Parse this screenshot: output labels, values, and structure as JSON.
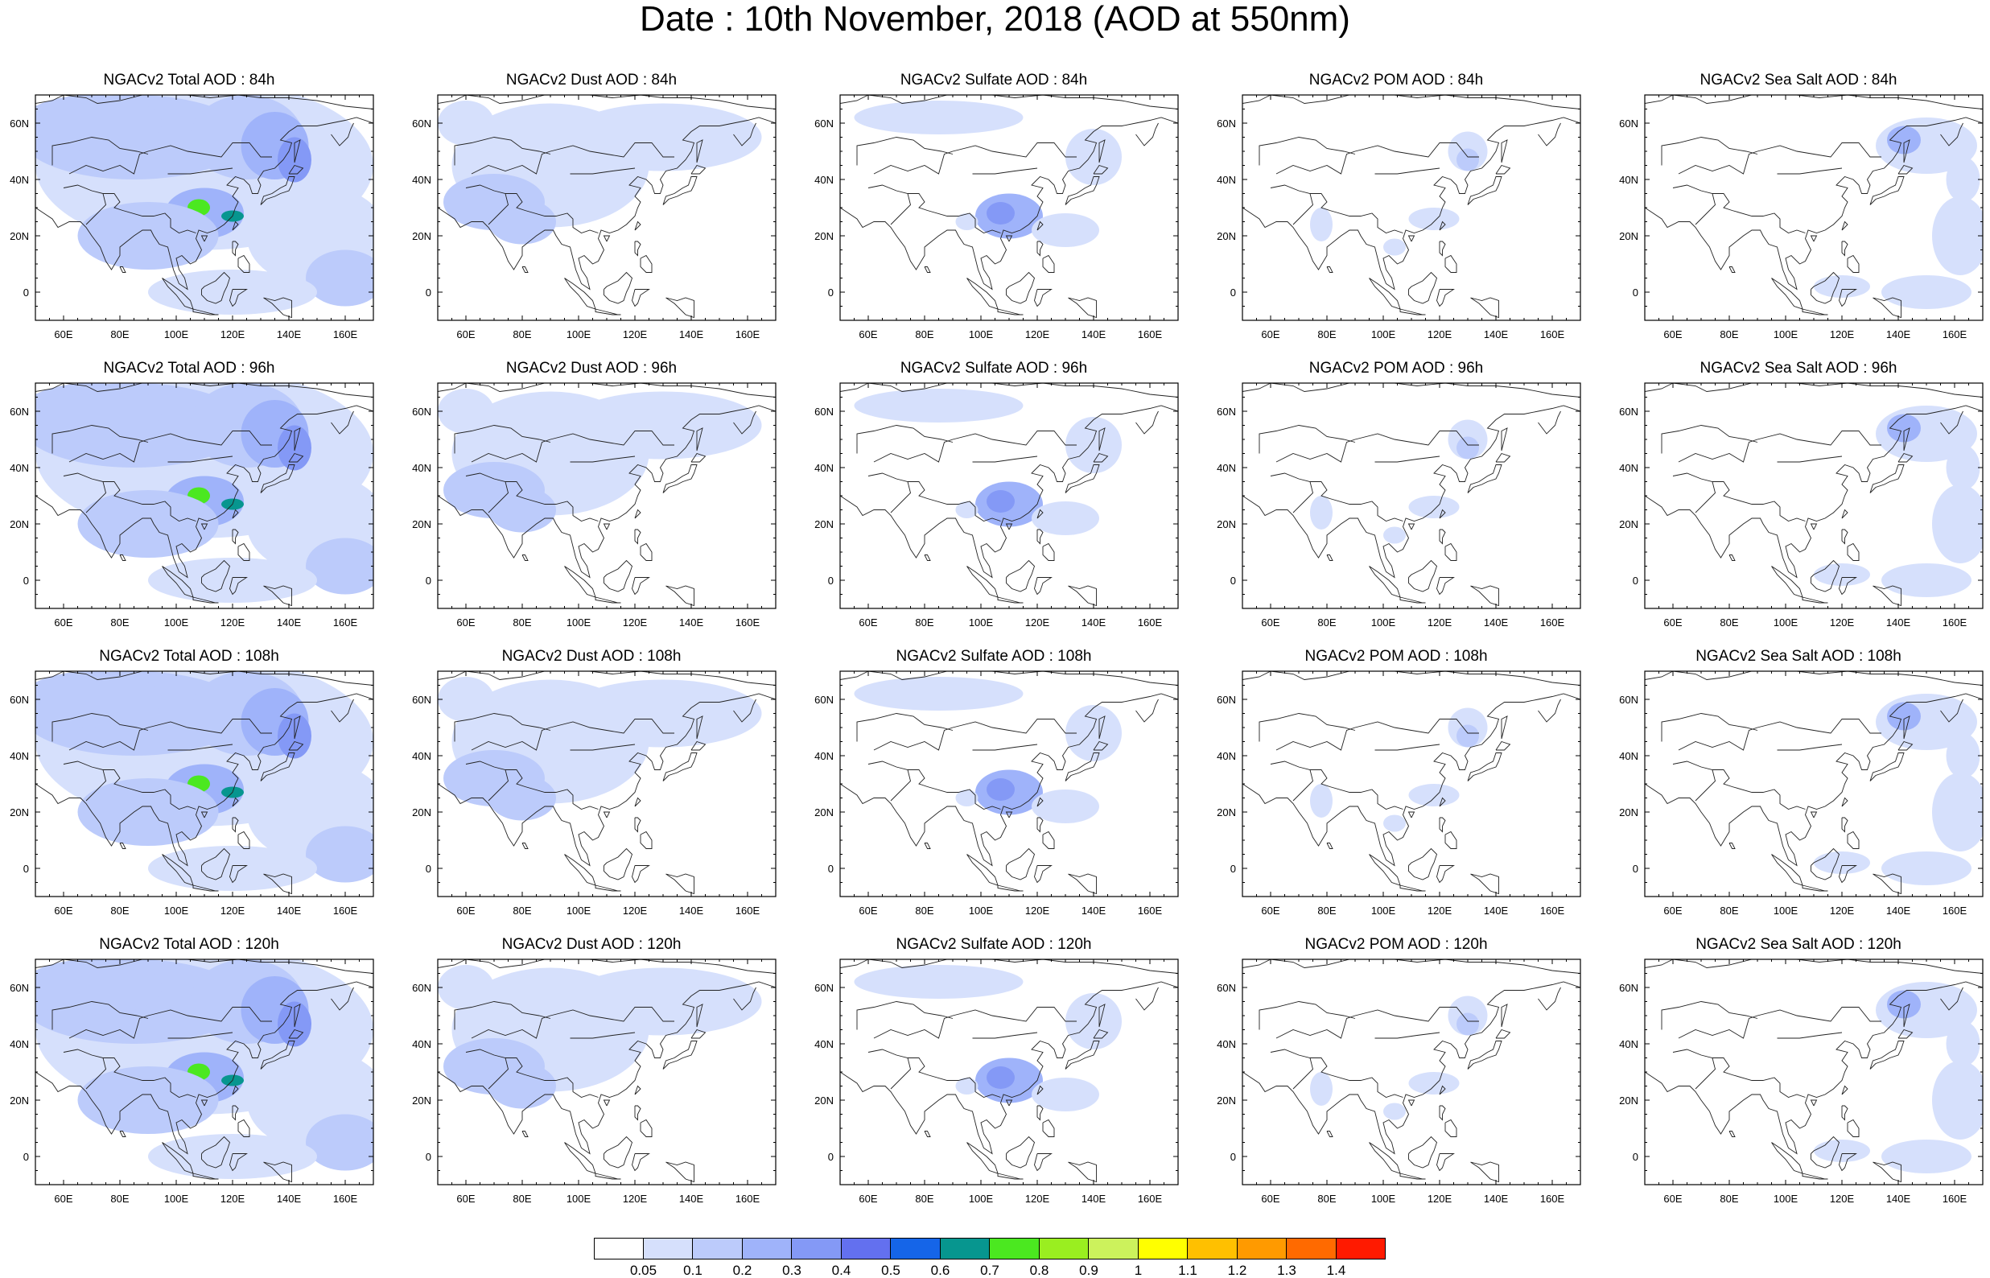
{
  "title": "Date : 10th November, 2018 (AOD at 550nm)",
  "columns": [
    "total",
    "dust",
    "sulfate",
    "pom",
    "seasalt"
  ],
  "rows": [
    "84h",
    "96h",
    "108h",
    "120h"
  ],
  "panels": [
    [
      {
        "title": "NGACv2 Total AOD : 84h",
        "species": "total"
      },
      {
        "title": "NGACv2 Dust AOD : 84h",
        "species": "dust"
      },
      {
        "title": "NGACv2 Sulfate AOD : 84h",
        "species": "sulfate"
      },
      {
        "title": "NGACv2 POM AOD : 84h",
        "species": "pom"
      },
      {
        "title": "NGACv2 Sea Salt AOD : 84h",
        "species": "seasalt"
      }
    ],
    [
      {
        "title": "NGACv2 Total AOD : 96h",
        "species": "total"
      },
      {
        "title": "NGACv2 Dust AOD : 96h",
        "species": "dust"
      },
      {
        "title": "NGACv2 Sulfate AOD : 96h",
        "species": "sulfate"
      },
      {
        "title": "NGACv2 POM AOD : 96h",
        "species": "pom"
      },
      {
        "title": "NGACv2 Sea Salt AOD : 96h",
        "species": "seasalt"
      }
    ],
    [
      {
        "title": "NGACv2 Total AOD : 108h",
        "species": "total"
      },
      {
        "title": "NGACv2 Dust AOD : 108h",
        "species": "dust"
      },
      {
        "title": "NGACv2 Sulfate AOD : 108h",
        "species": "sulfate"
      },
      {
        "title": "NGACv2 POM AOD : 108h",
        "species": "pom"
      },
      {
        "title": "NGACv2 Sea Salt AOD : 108h",
        "species": "seasalt"
      }
    ],
    [
      {
        "title": "NGACv2 Total AOD : 120h",
        "species": "total"
      },
      {
        "title": "NGACv2 Dust AOD : 120h",
        "species": "dust"
      },
      {
        "title": "NGACv2 Sulfate AOD : 120h",
        "species": "sulfate"
      },
      {
        "title": "NGACv2 POM AOD : 120h",
        "species": "pom"
      },
      {
        "title": "NGACv2 Sea Salt  AOD : 120h",
        "species": "seasalt"
      }
    ]
  ],
  "map": {
    "lon_range": [
      50,
      170
    ],
    "lat_range": [
      -10,
      70
    ],
    "x_ticks": [
      "60E",
      "80E",
      "100E",
      "120E",
      "140E",
      "160E"
    ],
    "y_ticks": [
      "60N",
      "40N",
      "20N",
      "0"
    ]
  },
  "colorbar": {
    "colors": [
      "#ffffff",
      "#d6e0fc",
      "#bccbfb",
      "#9fb3fa",
      "#8499f6",
      "#6370ef",
      "#1565e8",
      "#07968f",
      "#4be820",
      "#9aee20",
      "#ccf25c",
      "#ffff00",
      "#ffc000",
      "#ff9a00",
      "#ff6a00",
      "#ff1a00"
    ],
    "labels": [
      "0.05",
      "0.1",
      "0.2",
      "0.3",
      "0.4",
      "0.5",
      "0.6",
      "0.7",
      "0.8",
      "0.9",
      "1",
      "1.1",
      "1.2",
      "1.3",
      "1.4"
    ]
  }
}
